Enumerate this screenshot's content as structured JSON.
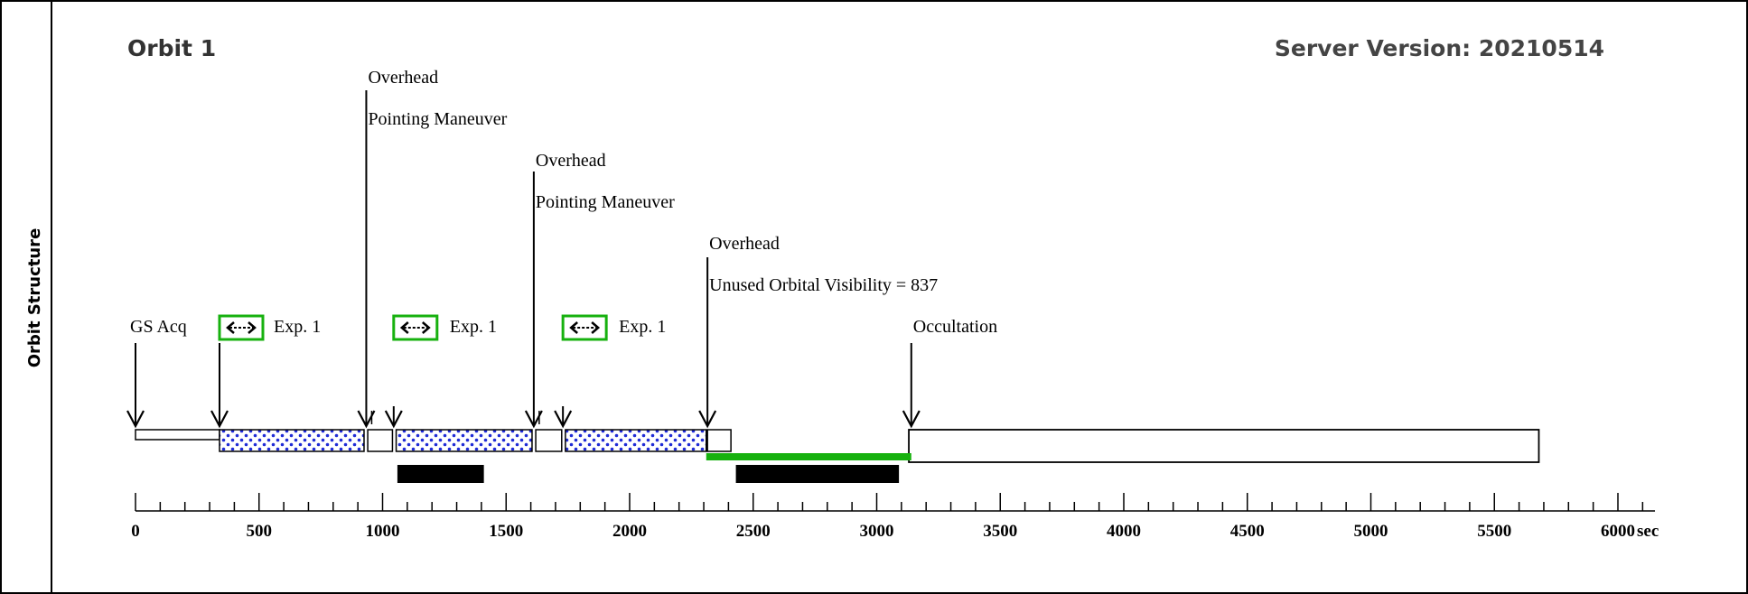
{
  "side_label": "Orbit Structure",
  "orbit_title": "Orbit 1",
  "server_version": "Server Version: 20210514",
  "annotations": {
    "overhead": "Overhead",
    "pointing_maneuver": "Pointing Maneuver",
    "gs_acq": "GS Acq",
    "exposure": "Exp. 1",
    "unused_visibility": "Unused Orbital Visibility = 837",
    "occultation": "Occultation"
  },
  "axis": {
    "unit": "sec",
    "ticks": [
      "0",
      "500",
      "1000",
      "1500",
      "2000",
      "2500",
      "3000",
      "3500",
      "4000",
      "4500",
      "5000",
      "5500",
      "6000"
    ]
  },
  "chart_data": {
    "type": "timeline",
    "x_unit": "sec",
    "xlim": [
      0,
      6150
    ],
    "segments": [
      {
        "kind": "gs_acq",
        "start": 0,
        "end": 340
      },
      {
        "kind": "exposure",
        "start": 340,
        "end": 925
      },
      {
        "kind": "overhead",
        "start": 940,
        "end": 1040
      },
      {
        "kind": "exposure",
        "start": 1055,
        "end": 1605
      },
      {
        "kind": "overhead",
        "start": 1620,
        "end": 1725
      },
      {
        "kind": "exposure",
        "start": 1740,
        "end": 2310
      },
      {
        "kind": "overhead",
        "start": 2315,
        "end": 2410
      },
      {
        "kind": "occultation",
        "start": 3130,
        "end": 5680
      }
    ],
    "black_bars": [
      {
        "start": 1060,
        "end": 1410
      },
      {
        "start": 2430,
        "end": 3090
      }
    ],
    "unused_visibility_bar": {
      "start": 2310,
      "end": 3140,
      "value": 837,
      "color": "#17b10f"
    },
    "colors": {
      "exposure_fill": "#1f2bd6",
      "green": "#17b10f",
      "black": "#000000"
    }
  }
}
